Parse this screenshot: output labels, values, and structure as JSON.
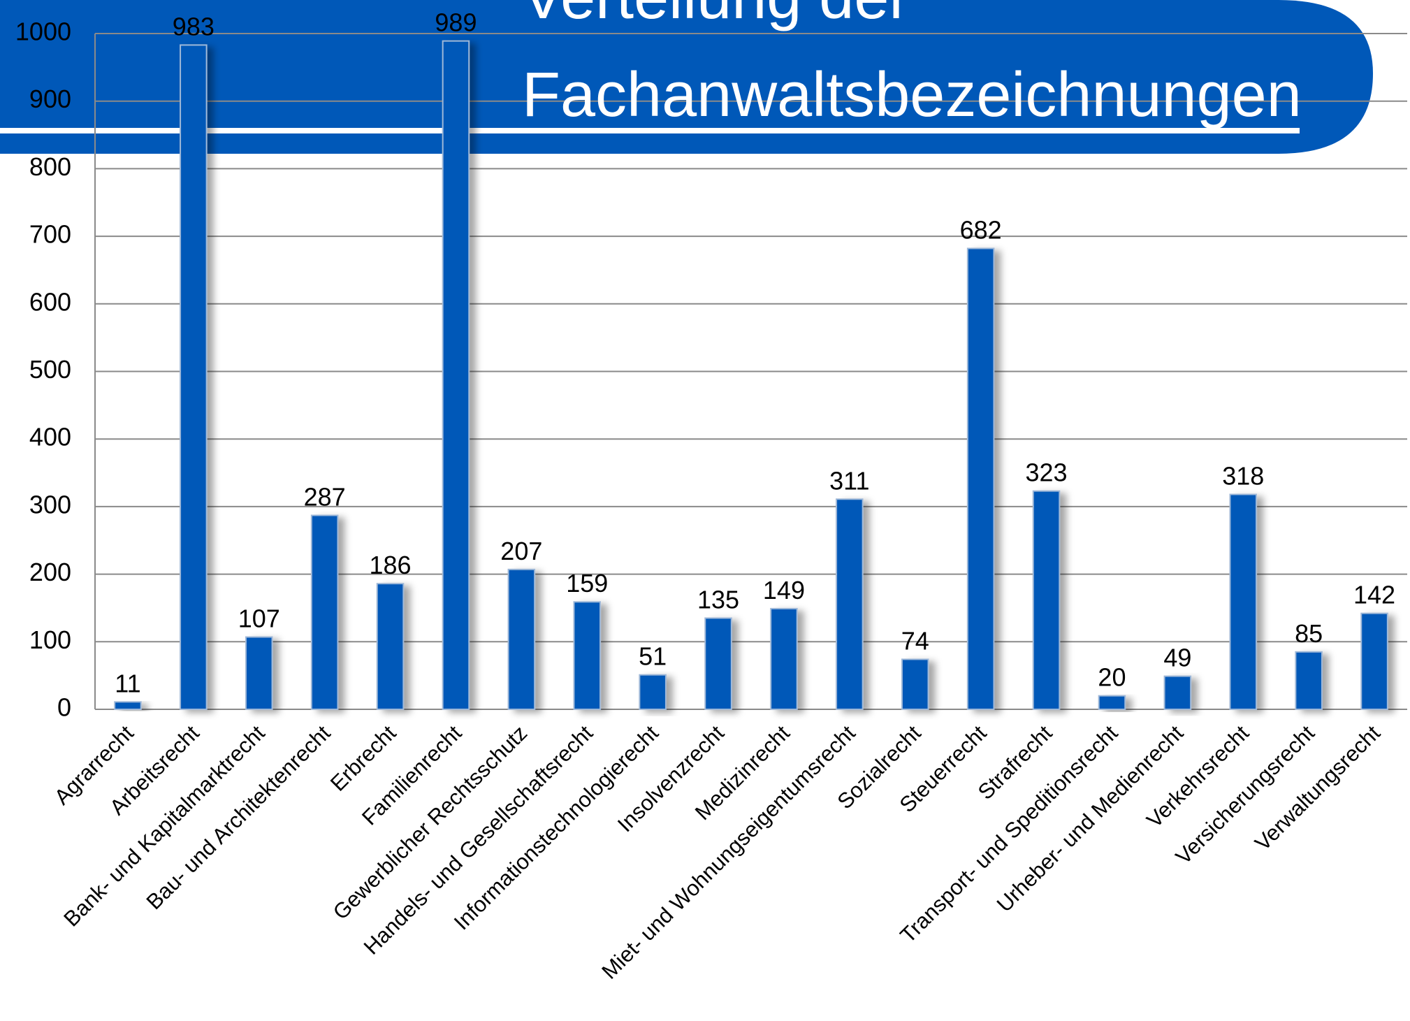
{
  "chart_data": {
    "type": "bar",
    "title": [
      "Verteilung der",
      "Fachanwaltsbezeichnungen"
    ],
    "categories": [
      "Agrarrecht",
      "Arbeitsrecht",
      "Bank- und Kapitalmarktrecht",
      "Bau- und Architektenrecht",
      "Erbrecht",
      "Familienrecht",
      "Gewerblicher Rechtsschutz",
      "Handels- und Gesellschaftsrecht",
      "Informationstechnologierecht",
      "Insolvenzrecht",
      "Medizinrecht",
      "Miet- und Wohnungseigentumsrecht",
      "Sozialrecht",
      "Steuerrecht",
      "Strafrecht",
      "Transport- und Speditionsrecht",
      "Urheber- und Medienrecht",
      "Verkehrsrecht",
      "Versicherungsrecht",
      "Verwaltungsrecht"
    ],
    "values": [
      11,
      983,
      107,
      287,
      186,
      989,
      207,
      159,
      51,
      135,
      149,
      311,
      74,
      682,
      323,
      20,
      49,
      318,
      85,
      142
    ],
    "color": "#0058b8",
    "ylim": [
      0,
      1000
    ],
    "yticks": [
      0,
      100,
      200,
      300,
      400,
      500,
      600,
      700,
      800,
      900,
      1000
    ],
    "grid": true
  }
}
